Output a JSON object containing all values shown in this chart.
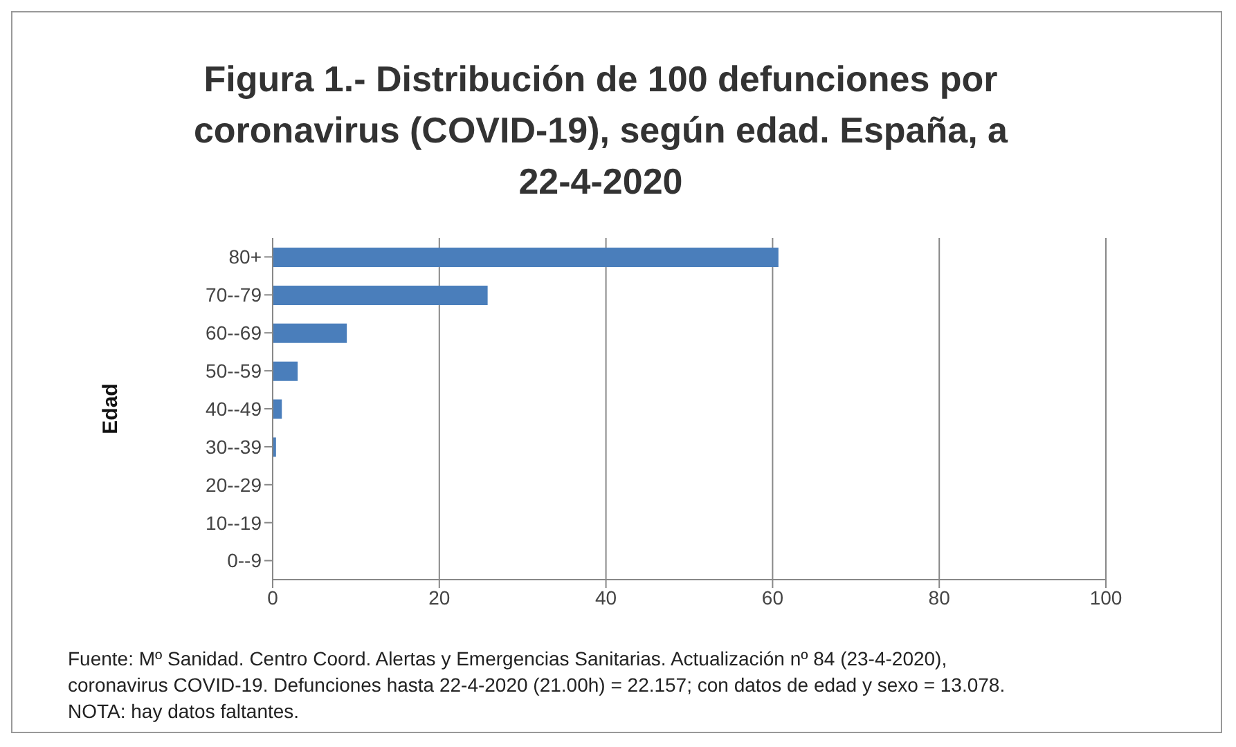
{
  "chart_data": {
    "type": "bar",
    "orientation": "horizontal",
    "title": "Figura  1.- Distribución de 100 defunciones por coronavirus (COVID-19), según edad. España, a 22-4-2020",
    "ylabel": "Edad",
    "categories": [
      "80+",
      "70--79",
      "60--69",
      "50--59",
      "40--49",
      "30--39",
      "20--29",
      "10--19",
      "0--9"
    ],
    "values": [
      60.7,
      25.8,
      8.9,
      3.0,
      1.1,
      0.4,
      0,
      0,
      0
    ],
    "color": "#4a7ebb",
    "xlim": [
      0,
      100
    ],
    "xticks": [
      0,
      20,
      40,
      60,
      80,
      100
    ],
    "grid": "x",
    "annotations": [
      "Fuente: Mº Sanidad.  Centro Coord. Alertas y Emergencias Sanitarias.  Actualización nº 84 (23-4-2020), coronavirus COVID-19.  Defunciones hasta 22-4-2020 (21.00h) = 22.157; con datos de edad y sexo = 13.078. NOTA: hay datos faltantes."
    ]
  }
}
